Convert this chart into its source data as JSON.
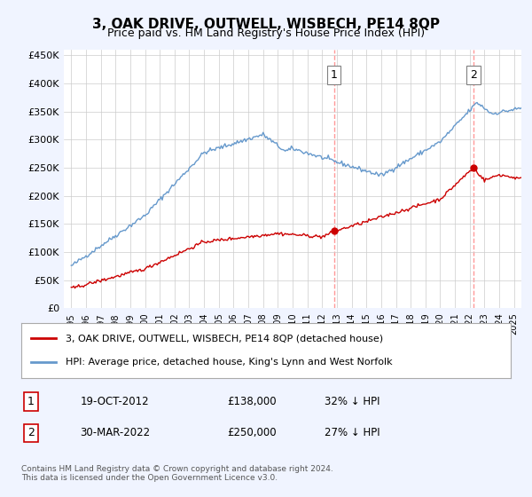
{
  "title": "3, OAK DRIVE, OUTWELL, WISBECH, PE14 8QP",
  "subtitle": "Price paid vs. HM Land Registry's House Price Index (HPI)",
  "ylabel_ticks": [
    "£0",
    "£50K",
    "£100K",
    "£150K",
    "£200K",
    "£250K",
    "£300K",
    "£350K",
    "£400K",
    "£450K"
  ],
  "ylim": [
    0,
    450000
  ],
  "xlim_start": 1995.0,
  "xlim_end": 2025.5,
  "transaction1": {
    "date": "19-OCT-2012",
    "price": 138000,
    "label": "1",
    "x": 2012.8
  },
  "transaction2": {
    "date": "30-MAR-2022",
    "price": 250000,
    "label": "2",
    "x": 2022.25
  },
  "legend_line1": "3, OAK DRIVE, OUTWELL, WISBECH, PE14 8QP (detached house)",
  "legend_line2": "HPI: Average price, detached house, King's Lynn and West Norfolk",
  "annotation1": "1    19-OCT-2012         £138,000        32% ↓ HPI",
  "annotation2": "2    30-MAR-2022         £250,000        27% ↓ HPI",
  "footnote": "Contains HM Land Registry data © Crown copyright and database right 2024.\nThis data is licensed under the Open Government Licence v3.0.",
  "property_color": "#cc0000",
  "hpi_color": "#6699cc",
  "vline_color": "#ff9999",
  "background_color": "#f0f4ff",
  "plot_bg_color": "#ffffff"
}
